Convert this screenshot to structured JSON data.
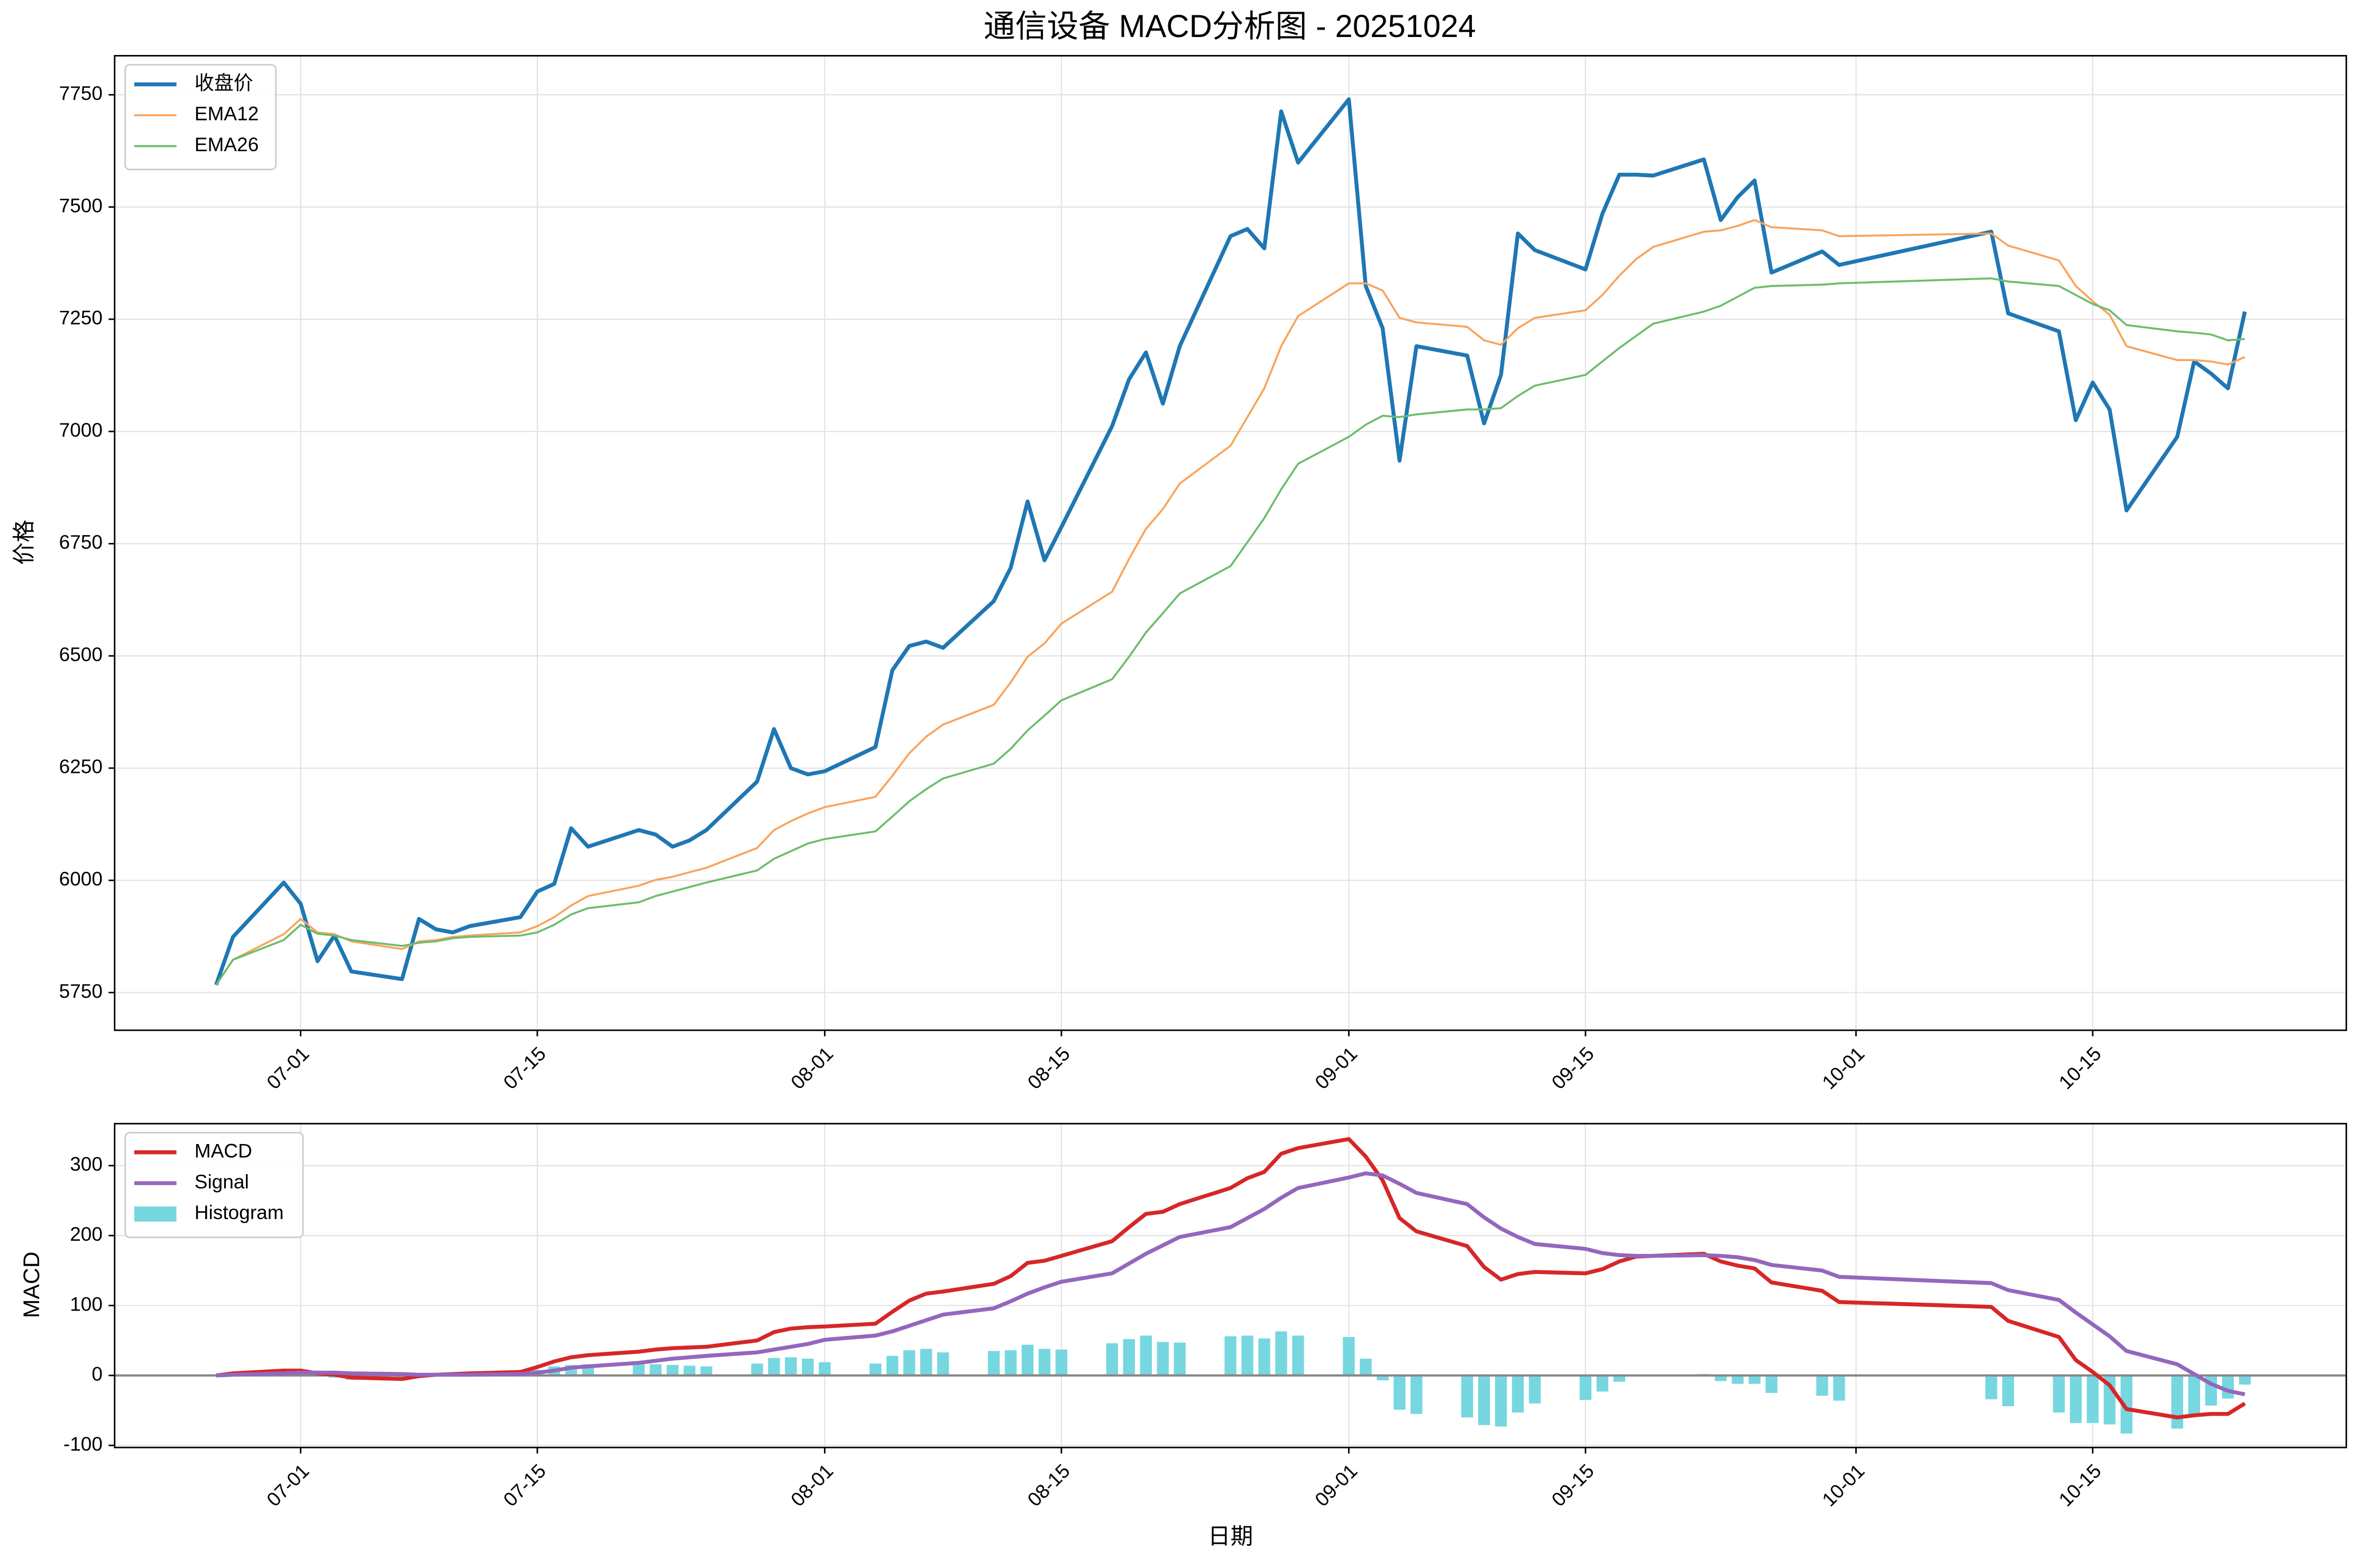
{
  "chart_data": [
    {
      "type": "line",
      "title": "通信设备 MACD分析图 - 20251024",
      "ylabel": "价格",
      "x": [
        "06-26",
        "06-27",
        "06-30",
        "07-01",
        "07-02",
        "07-03",
        "07-04",
        "07-07",
        "07-08",
        "07-09",
        "07-10",
        "07-11",
        "07-14",
        "07-15",
        "07-16",
        "07-17",
        "07-18",
        "07-21",
        "07-22",
        "07-23",
        "07-24",
        "07-25",
        "07-28",
        "07-29",
        "07-30",
        "07-31",
        "08-01",
        "08-04",
        "08-05",
        "08-06",
        "08-07",
        "08-08",
        "08-11",
        "08-12",
        "08-13",
        "08-14",
        "08-15",
        "08-18",
        "08-19",
        "08-20",
        "08-21",
        "08-22",
        "08-25",
        "08-26",
        "08-27",
        "08-28",
        "08-29",
        "09-01",
        "09-02",
        "09-03",
        "09-04",
        "09-05",
        "09-08",
        "09-09",
        "09-10",
        "09-11",
        "09-12",
        "09-15",
        "09-16",
        "09-17",
        "09-18",
        "09-19",
        "09-22",
        "09-23",
        "09-24",
        "09-25",
        "09-26",
        "09-29",
        "09-30",
        "10-09",
        "10-10",
        "10-13",
        "10-14",
        "10-15",
        "10-16",
        "10-17",
        "10-20",
        "10-21",
        "10-22",
        "10-23",
        "10-24"
      ],
      "series": [
        {
          "name": "收盘价",
          "color": "#1f77b4",
          "linewidth": 2.6,
          "values": [
            5767,
            5874,
            5995,
            5948,
            5820,
            5877,
            5797,
            5780,
            5914,
            5891,
            5884,
            5898,
            5918,
            5975,
            5992,
            6116,
            6075,
            6112,
            6102,
            6075,
            6089,
            6112,
            6220,
            6337,
            6250,
            6236,
            6243,
            6297,
            6468,
            6522,
            6532,
            6518,
            6622,
            6696,
            6844,
            6713,
            6787,
            7012,
            7116,
            7176,
            7062,
            7190,
            7435,
            7451,
            7408,
            7713,
            7599,
            7740,
            7324,
            7230,
            6935,
            7190,
            7169,
            7018,
            7126,
            7441,
            7404,
            7361,
            7485,
            7572,
            7572,
            7570,
            7606,
            7471,
            7522,
            7559,
            7354,
            7401,
            7371,
            7445,
            7263,
            7223,
            7025,
            7109,
            7049,
            6824,
            6988,
            7156,
            7129,
            7096,
            7267
          ]
        },
        {
          "name": "EMA12",
          "color": "#f9a35b",
          "linewidth": 1.3,
          "values": [
            5767,
            5823,
            5880,
            5914,
            5884,
            5880,
            5864,
            5847,
            5864,
            5867,
            5874,
            5877,
            5884,
            5898,
            5918,
            5944,
            5965,
            5988,
            6001,
            6008,
            6018,
            6028,
            6072,
            6112,
            6132,
            6149,
            6163,
            6186,
            6233,
            6283,
            6320,
            6347,
            6391,
            6441,
            6498,
            6528,
            6572,
            6643,
            6716,
            6783,
            6827,
            6884,
            6968,
            7032,
            7096,
            7190,
            7257,
            7330,
            7330,
            7314,
            7253,
            7243,
            7233,
            7203,
            7193,
            7230,
            7253,
            7270,
            7304,
            7347,
            7384,
            7411,
            7445,
            7448,
            7458,
            7471,
            7455,
            7448,
            7435,
            7441,
            7414,
            7381,
            7324,
            7290,
            7260,
            7190,
            7159,
            7159,
            7156,
            7149,
            7166
          ]
        },
        {
          "name": "EMA26",
          "color": "#6bbd6b",
          "linewidth": 1.3,
          "values": [
            5767,
            5823,
            5867,
            5901,
            5881,
            5877,
            5867,
            5854,
            5861,
            5864,
            5871,
            5874,
            5877,
            5884,
            5901,
            5924,
            5938,
            5951,
            5965,
            5975,
            5985,
            5995,
            6022,
            6048,
            6065,
            6082,
            6092,
            6109,
            6142,
            6176,
            6203,
            6227,
            6260,
            6293,
            6334,
            6367,
            6401,
            6448,
            6498,
            6552,
            6595,
            6639,
            6700,
            6753,
            6807,
            6871,
            6928,
            6988,
            7015,
            7035,
            7032,
            7038,
            7049,
            7049,
            7052,
            7079,
            7102,
            7126,
            7156,
            7186,
            7213,
            7240,
            7267,
            7280,
            7300,
            7320,
            7324,
            7327,
            7330,
            7341,
            7334,
            7324,
            7304,
            7284,
            7270,
            7237,
            7223,
            7220,
            7216,
            7203,
            7206
          ]
        }
      ],
      "xlim": [
        "06-20",
        "10-30"
      ],
      "xticks": [
        "07-01",
        "07-15",
        "08-01",
        "08-15",
        "09-01",
        "09-15",
        "10-01",
        "10-15"
      ],
      "ylim": [
        5666,
        7837
      ],
      "yticks": [
        5750,
        6000,
        6250,
        6500,
        6750,
        7000,
        7250,
        7500,
        7750
      ],
      "grid": true,
      "legend": "upper left"
    },
    {
      "type": "line",
      "ylabel": "MACD",
      "xlabel": "日期",
      "x": [
        "06-26",
        "06-27",
        "06-30",
        "07-01",
        "07-02",
        "07-03",
        "07-04",
        "07-07",
        "07-08",
        "07-09",
        "07-10",
        "07-11",
        "07-14",
        "07-15",
        "07-16",
        "07-17",
        "07-18",
        "07-21",
        "07-22",
        "07-23",
        "07-24",
        "07-25",
        "07-28",
        "07-29",
        "07-30",
        "07-31",
        "08-01",
        "08-04",
        "08-05",
        "08-06",
        "08-07",
        "08-08",
        "08-11",
        "08-12",
        "08-13",
        "08-14",
        "08-15",
        "08-18",
        "08-19",
        "08-20",
        "08-21",
        "08-22",
        "08-25",
        "08-26",
        "08-27",
        "08-28",
        "08-29",
        "09-01",
        "09-02",
        "09-03",
        "09-04",
        "09-05",
        "09-08",
        "09-09",
        "09-10",
        "09-11",
        "09-12",
        "09-15",
        "09-16",
        "09-17",
        "09-18",
        "09-19",
        "09-22",
        "09-23",
        "09-24",
        "09-25",
        "09-26",
        "09-29",
        "09-30",
        "10-09",
        "10-10",
        "10-13",
        "10-14",
        "10-15",
        "10-16",
        "10-17",
        "10-20",
        "10-21",
        "10-22",
        "10-23",
        "10-24"
      ],
      "series": [
        {
          "name": "MACD",
          "color": "#d62728",
          "linewidth": 2.6,
          "values": [
            0,
            3,
            7,
            7,
            3,
            1,
            -3,
            -5,
            -1,
            1,
            2,
            3,
            5,
            12,
            20,
            26,
            29,
            34,
            37,
            39,
            40,
            41,
            50,
            62,
            67,
            69,
            70,
            74,
            91,
            107,
            117,
            120,
            131,
            142,
            161,
            164,
            171,
            192,
            212,
            231,
            234,
            245,
            268,
            282,
            291,
            317,
            325,
            338,
            313,
            279,
            225,
            206,
            185,
            155,
            137,
            145,
            148,
            146,
            152,
            163,
            170,
            171,
            174,
            163,
            157,
            153,
            133,
            121,
            105,
            98,
            78,
            55,
            22,
            5,
            -14,
            -48,
            -60,
            -57,
            -55,
            -55,
            -40
          ]
        },
        {
          "name": "Signal",
          "color": "#9467bd",
          "linewidth": 2.6,
          "values": [
            0,
            1,
            3,
            4,
            4,
            4,
            3,
            2,
            1,
            1,
            1,
            1,
            2,
            4,
            7,
            11,
            13,
            18,
            21,
            24,
            26,
            28,
            33,
            37,
            41,
            45,
            51,
            57,
            63,
            71,
            79,
            87,
            96,
            106,
            117,
            126,
            134,
            146,
            160,
            174,
            186,
            198,
            212,
            225,
            238,
            254,
            268,
            283,
            289,
            286,
            274,
            261,
            245,
            226,
            210,
            198,
            188,
            181,
            175,
            172,
            171,
            171,
            172,
            171,
            169,
            165,
            158,
            150,
            141,
            132,
            122,
            108,
            90,
            73,
            56,
            35,
            16,
            2,
            -12,
            -22,
            -27
          ]
        },
        {
          "name": "Histogram",
          "type": "bar",
          "color": "#76d7e0",
          "values": [
            0,
            2,
            4,
            3,
            -1,
            -3,
            -6,
            -7,
            -2,
            0,
            1,
            2,
            3,
            8,
            13,
            15,
            16,
            16,
            16,
            15,
            14,
            13,
            17,
            25,
            26,
            24,
            19,
            17,
            28,
            36,
            38,
            33,
            35,
            36,
            44,
            38,
            37,
            46,
            52,
            57,
            48,
            47,
            56,
            57,
            53,
            63,
            57,
            55,
            24,
            -7,
            -49,
            -55,
            -60,
            -71,
            -73,
            -53,
            -40,
            -35,
            -23,
            -9,
            -1,
            0,
            2,
            -8,
            -12,
            -12,
            -25,
            -29,
            -36,
            -34,
            -44,
            -53,
            -68,
            -68,
            -70,
            -83,
            -76,
            -59,
            -43,
            -33,
            -13
          ]
        }
      ],
      "xlim": [
        "06-20",
        "10-30"
      ],
      "xticks": [
        "07-01",
        "07-15",
        "08-01",
        "08-15",
        "09-01",
        "09-15",
        "10-01",
        "10-15"
      ],
      "ylim": [
        -103,
        360
      ],
      "yticks": [
        -100,
        0,
        100,
        200,
        300
      ],
      "grid": true,
      "zero_line": true,
      "legend": "upper left"
    }
  ]
}
